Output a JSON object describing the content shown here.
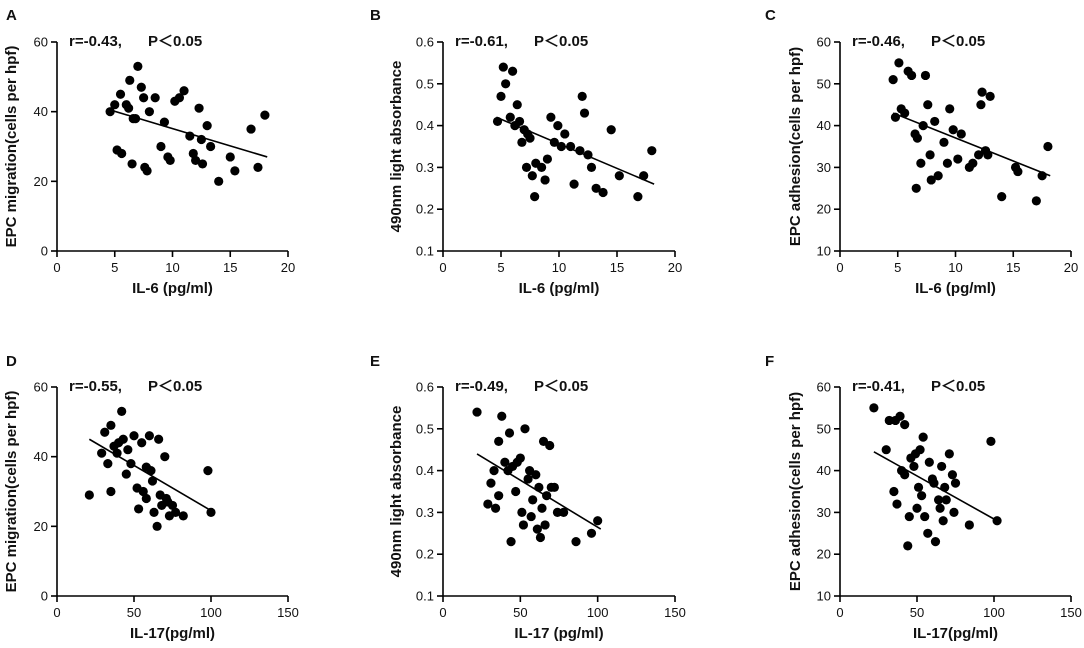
{
  "figure_colors": {
    "marker": "#000000",
    "line": "#000000",
    "background": "#ffffff"
  },
  "chart_data": [
    {
      "type": "scatter",
      "panel": "A",
      "annotation_r": "r=-0.43,",
      "annotation_p": "P＜0.05",
      "xlabel": "IL-6 (pg/ml)",
      "ylabel": "EPC migration(cells per hpf)",
      "xlim": [
        0,
        20
      ],
      "ylim": [
        0,
        60
      ],
      "xticks": [
        0,
        5,
        10,
        15,
        20
      ],
      "yticks": [
        0,
        20,
        40,
        60
      ],
      "fit": {
        "x": [
          4.6,
          18.2
        ],
        "y": [
          40.5,
          27
        ]
      },
      "points": [
        {
          "x": 4.6,
          "y": 40
        },
        {
          "x": 5.0,
          "y": 42
        },
        {
          "x": 5.2,
          "y": 29
        },
        {
          "x": 5.5,
          "y": 45
        },
        {
          "x": 5.6,
          "y": 28
        },
        {
          "x": 6.0,
          "y": 42
        },
        {
          "x": 6.2,
          "y": 41
        },
        {
          "x": 6.3,
          "y": 49
        },
        {
          "x": 6.5,
          "y": 25
        },
        {
          "x": 6.6,
          "y": 38
        },
        {
          "x": 6.8,
          "y": 38
        },
        {
          "x": 7.0,
          "y": 53
        },
        {
          "x": 7.3,
          "y": 47
        },
        {
          "x": 7.5,
          "y": 44
        },
        {
          "x": 7.6,
          "y": 24
        },
        {
          "x": 7.8,
          "y": 23
        },
        {
          "x": 8.0,
          "y": 40
        },
        {
          "x": 8.5,
          "y": 44
        },
        {
          "x": 9.0,
          "y": 30
        },
        {
          "x": 9.3,
          "y": 37
        },
        {
          "x": 9.6,
          "y": 27
        },
        {
          "x": 9.8,
          "y": 26
        },
        {
          "x": 10.2,
          "y": 43
        },
        {
          "x": 10.6,
          "y": 44
        },
        {
          "x": 11.0,
          "y": 46
        },
        {
          "x": 11.5,
          "y": 33
        },
        {
          "x": 11.8,
          "y": 28
        },
        {
          "x": 12.0,
          "y": 26
        },
        {
          "x": 12.3,
          "y": 41
        },
        {
          "x": 12.5,
          "y": 32
        },
        {
          "x": 12.6,
          "y": 25
        },
        {
          "x": 13.0,
          "y": 36
        },
        {
          "x": 13.3,
          "y": 30
        },
        {
          "x": 14.0,
          "y": 20
        },
        {
          "x": 15.0,
          "y": 27
        },
        {
          "x": 15.4,
          "y": 23
        },
        {
          "x": 16.8,
          "y": 35
        },
        {
          "x": 17.4,
          "y": 24
        },
        {
          "x": 18.0,
          "y": 39
        }
      ]
    },
    {
      "type": "scatter",
      "panel": "B",
      "annotation_r": "r=-0.61,",
      "annotation_p": "P＜0.05",
      "xlabel": "IL-6 (pg/ml)",
      "ylabel": "490nm light absorbance",
      "xlim": [
        0,
        20
      ],
      "ylim": [
        0.1,
        0.6
      ],
      "xticks": [
        0,
        5,
        10,
        15,
        20
      ],
      "yticks": [
        0.1,
        0.2,
        0.3,
        0.4,
        0.5,
        0.6
      ],
      "fit": {
        "x": [
          4.6,
          18.2
        ],
        "y": [
          0.42,
          0.26
        ]
      },
      "points": [
        {
          "x": 4.7,
          "y": 0.41
        },
        {
          "x": 5.0,
          "y": 0.47
        },
        {
          "x": 5.2,
          "y": 0.54
        },
        {
          "x": 5.4,
          "y": 0.5
        },
        {
          "x": 5.8,
          "y": 0.42
        },
        {
          "x": 6.0,
          "y": 0.53
        },
        {
          "x": 6.2,
          "y": 0.4
        },
        {
          "x": 6.4,
          "y": 0.45
        },
        {
          "x": 6.6,
          "y": 0.41
        },
        {
          "x": 6.8,
          "y": 0.36
        },
        {
          "x": 7.0,
          "y": 0.39
        },
        {
          "x": 7.2,
          "y": 0.3
        },
        {
          "x": 7.3,
          "y": 0.38
        },
        {
          "x": 7.5,
          "y": 0.37
        },
        {
          "x": 7.7,
          "y": 0.28
        },
        {
          "x": 7.9,
          "y": 0.23
        },
        {
          "x": 8.0,
          "y": 0.31
        },
        {
          "x": 8.5,
          "y": 0.3
        },
        {
          "x": 8.8,
          "y": 0.27
        },
        {
          "x": 9.0,
          "y": 0.32
        },
        {
          "x": 9.3,
          "y": 0.42
        },
        {
          "x": 9.6,
          "y": 0.36
        },
        {
          "x": 9.9,
          "y": 0.4
        },
        {
          "x": 10.2,
          "y": 0.35
        },
        {
          "x": 10.5,
          "y": 0.38
        },
        {
          "x": 11.0,
          "y": 0.35
        },
        {
          "x": 11.3,
          "y": 0.26
        },
        {
          "x": 11.8,
          "y": 0.34
        },
        {
          "x": 12.0,
          "y": 0.47
        },
        {
          "x": 12.2,
          "y": 0.43
        },
        {
          "x": 12.5,
          "y": 0.33
        },
        {
          "x": 12.8,
          "y": 0.3
        },
        {
          "x": 13.2,
          "y": 0.25
        },
        {
          "x": 13.8,
          "y": 0.24
        },
        {
          "x": 14.5,
          "y": 0.39
        },
        {
          "x": 15.2,
          "y": 0.28
        },
        {
          "x": 16.8,
          "y": 0.23
        },
        {
          "x": 17.3,
          "y": 0.28
        },
        {
          "x": 18.0,
          "y": 0.34
        }
      ]
    },
    {
      "type": "scatter",
      "panel": "C",
      "annotation_r": "r=-0.46,",
      "annotation_p": "P＜0.05",
      "xlabel": "IL-6 (pg/ml)",
      "ylabel": "EPC adhesion(cells per hpf)",
      "xlim": [
        0,
        20
      ],
      "ylim": [
        10,
        60
      ],
      "xticks": [
        0,
        5,
        10,
        15,
        20
      ],
      "yticks": [
        10,
        20,
        30,
        40,
        50,
        60
      ],
      "fit": {
        "x": [
          4.6,
          18.2
        ],
        "y": [
          43,
          28
        ]
      },
      "points": [
        {
          "x": 4.6,
          "y": 51
        },
        {
          "x": 4.8,
          "y": 42
        },
        {
          "x": 5.1,
          "y": 55
        },
        {
          "x": 5.3,
          "y": 44
        },
        {
          "x": 5.6,
          "y": 43
        },
        {
          "x": 5.9,
          "y": 53
        },
        {
          "x": 6.2,
          "y": 52
        },
        {
          "x": 6.5,
          "y": 38
        },
        {
          "x": 6.6,
          "y": 25
        },
        {
          "x": 6.7,
          "y": 37
        },
        {
          "x": 7.0,
          "y": 31
        },
        {
          "x": 7.2,
          "y": 40
        },
        {
          "x": 7.4,
          "y": 52
        },
        {
          "x": 7.6,
          "y": 45
        },
        {
          "x": 7.8,
          "y": 33
        },
        {
          "x": 7.9,
          "y": 27
        },
        {
          "x": 8.2,
          "y": 41
        },
        {
          "x": 8.5,
          "y": 28
        },
        {
          "x": 9.0,
          "y": 36
        },
        {
          "x": 9.3,
          "y": 31
        },
        {
          "x": 9.5,
          "y": 44
        },
        {
          "x": 9.8,
          "y": 39
        },
        {
          "x": 10.2,
          "y": 32
        },
        {
          "x": 10.5,
          "y": 38
        },
        {
          "x": 11.2,
          "y": 30
        },
        {
          "x": 11.5,
          "y": 31
        },
        {
          "x": 12.0,
          "y": 33
        },
        {
          "x": 12.2,
          "y": 45
        },
        {
          "x": 12.3,
          "y": 48
        },
        {
          "x": 12.6,
          "y": 34
        },
        {
          "x": 12.8,
          "y": 33
        },
        {
          "x": 13.0,
          "y": 47
        },
        {
          "x": 14.0,
          "y": 23
        },
        {
          "x": 15.2,
          "y": 30
        },
        {
          "x": 15.4,
          "y": 29
        },
        {
          "x": 17.0,
          "y": 22
        },
        {
          "x": 17.5,
          "y": 28
        },
        {
          "x": 18.0,
          "y": 35
        }
      ]
    },
    {
      "type": "scatter",
      "panel": "D",
      "annotation_r": "r=-0.55,",
      "annotation_p": "P＜0.05",
      "xlabel": "IL-17(pg/ml)",
      "ylabel": "EPC migration(cells per hpf)",
      "xlim": [
        0,
        150
      ],
      "ylim": [
        0,
        60
      ],
      "xticks": [
        0,
        50,
        100,
        150
      ],
      "yticks": [
        0,
        20,
        40,
        60
      ],
      "fit": {
        "x": [
          21,
          102
        ],
        "y": [
          45,
          24
        ]
      },
      "points": [
        {
          "x": 21,
          "y": 29
        },
        {
          "x": 29,
          "y": 41
        },
        {
          "x": 31,
          "y": 47
        },
        {
          "x": 33,
          "y": 38
        },
        {
          "x": 35,
          "y": 49
        },
        {
          "x": 35,
          "y": 30
        },
        {
          "x": 37,
          "y": 43
        },
        {
          "x": 39,
          "y": 41
        },
        {
          "x": 40,
          "y": 44
        },
        {
          "x": 42,
          "y": 53
        },
        {
          "x": 43,
          "y": 45
        },
        {
          "x": 45,
          "y": 35
        },
        {
          "x": 46,
          "y": 42
        },
        {
          "x": 48,
          "y": 38
        },
        {
          "x": 50,
          "y": 46
        },
        {
          "x": 52,
          "y": 31
        },
        {
          "x": 53,
          "y": 25
        },
        {
          "x": 55,
          "y": 44
        },
        {
          "x": 56,
          "y": 30
        },
        {
          "x": 58,
          "y": 28
        },
        {
          "x": 58,
          "y": 37
        },
        {
          "x": 60,
          "y": 46
        },
        {
          "x": 61,
          "y": 36
        },
        {
          "x": 62,
          "y": 33
        },
        {
          "x": 63,
          "y": 24
        },
        {
          "x": 65,
          "y": 20
        },
        {
          "x": 66,
          "y": 45
        },
        {
          "x": 67,
          "y": 29
        },
        {
          "x": 68,
          "y": 26
        },
        {
          "x": 70,
          "y": 40
        },
        {
          "x": 71,
          "y": 28
        },
        {
          "x": 72,
          "y": 27
        },
        {
          "x": 73,
          "y": 23
        },
        {
          "x": 75,
          "y": 26
        },
        {
          "x": 77,
          "y": 24
        },
        {
          "x": 82,
          "y": 23
        },
        {
          "x": 98,
          "y": 36
        },
        {
          "x": 100,
          "y": 24
        }
      ]
    },
    {
      "type": "scatter",
      "panel": "E",
      "annotation_r": "r=-0.49,",
      "annotation_p": "P＜0.05",
      "xlabel": "IL-17 (pg/ml)",
      "ylabel": "490nm light absorbance",
      "xlim": [
        0,
        150
      ],
      "ylim": [
        0.1,
        0.6
      ],
      "xticks": [
        0,
        50,
        100,
        150
      ],
      "yticks": [
        0.1,
        0.2,
        0.3,
        0.4,
        0.5,
        0.6
      ],
      "fit": {
        "x": [
          22,
          102
        ],
        "y": [
          0.44,
          0.26
        ]
      },
      "points": [
        {
          "x": 22,
          "y": 0.54
        },
        {
          "x": 29,
          "y": 0.32
        },
        {
          "x": 31,
          "y": 0.37
        },
        {
          "x": 33,
          "y": 0.4
        },
        {
          "x": 34,
          "y": 0.31
        },
        {
          "x": 36,
          "y": 0.47
        },
        {
          "x": 36,
          "y": 0.34
        },
        {
          "x": 38,
          "y": 0.53
        },
        {
          "x": 40,
          "y": 0.42
        },
        {
          "x": 42,
          "y": 0.4
        },
        {
          "x": 43,
          "y": 0.49
        },
        {
          "x": 44,
          "y": 0.23
        },
        {
          "x": 45,
          "y": 0.41
        },
        {
          "x": 47,
          "y": 0.35
        },
        {
          "x": 48,
          "y": 0.42
        },
        {
          "x": 50,
          "y": 0.43
        },
        {
          "x": 51,
          "y": 0.3
        },
        {
          "x": 52,
          "y": 0.27
        },
        {
          "x": 53,
          "y": 0.5
        },
        {
          "x": 55,
          "y": 0.38
        },
        {
          "x": 56,
          "y": 0.4
        },
        {
          "x": 57,
          "y": 0.29
        },
        {
          "x": 58,
          "y": 0.33
        },
        {
          "x": 60,
          "y": 0.39
        },
        {
          "x": 61,
          "y": 0.26
        },
        {
          "x": 62,
          "y": 0.36
        },
        {
          "x": 63,
          "y": 0.24
        },
        {
          "x": 64,
          "y": 0.31
        },
        {
          "x": 65,
          "y": 0.47
        },
        {
          "x": 66,
          "y": 0.27
        },
        {
          "x": 67,
          "y": 0.34
        },
        {
          "x": 69,
          "y": 0.46
        },
        {
          "x": 70,
          "y": 0.36
        },
        {
          "x": 72,
          "y": 0.36
        },
        {
          "x": 74,
          "y": 0.3
        },
        {
          "x": 78,
          "y": 0.3
        },
        {
          "x": 86,
          "y": 0.23
        },
        {
          "x": 96,
          "y": 0.25
        },
        {
          "x": 100,
          "y": 0.28
        }
      ]
    },
    {
      "type": "scatter",
      "panel": "F",
      "annotation_r": "r=-0.41,",
      "annotation_p": "P＜0.05",
      "xlabel": "IL-17(pg/ml)",
      "ylabel": "EPC adhesion(cells per hpf)",
      "xlim": [
        0,
        150
      ],
      "ylim": [
        10,
        60
      ],
      "xticks": [
        0,
        50,
        100,
        150
      ],
      "yticks": [
        10,
        20,
        30,
        40,
        50,
        60
      ],
      "fit": {
        "x": [
          22,
          102
        ],
        "y": [
          44.5,
          28
        ]
      },
      "points": [
        {
          "x": 22,
          "y": 55
        },
        {
          "x": 30,
          "y": 45
        },
        {
          "x": 32,
          "y": 52
        },
        {
          "x": 35,
          "y": 35
        },
        {
          "x": 36,
          "y": 52
        },
        {
          "x": 37,
          "y": 32
        },
        {
          "x": 39,
          "y": 53
        },
        {
          "x": 40,
          "y": 40
        },
        {
          "x": 42,
          "y": 39
        },
        {
          "x": 42,
          "y": 51
        },
        {
          "x": 44,
          "y": 22
        },
        {
          "x": 45,
          "y": 29
        },
        {
          "x": 46,
          "y": 43
        },
        {
          "x": 48,
          "y": 41
        },
        {
          "x": 49,
          "y": 44
        },
        {
          "x": 50,
          "y": 31
        },
        {
          "x": 51,
          "y": 36
        },
        {
          "x": 52,
          "y": 45
        },
        {
          "x": 53,
          "y": 34
        },
        {
          "x": 54,
          "y": 48
        },
        {
          "x": 55,
          "y": 29
        },
        {
          "x": 57,
          "y": 25
        },
        {
          "x": 58,
          "y": 42
        },
        {
          "x": 60,
          "y": 38
        },
        {
          "x": 61,
          "y": 37
        },
        {
          "x": 62,
          "y": 23
        },
        {
          "x": 64,
          "y": 33
        },
        {
          "x": 65,
          "y": 31
        },
        {
          "x": 66,
          "y": 41
        },
        {
          "x": 67,
          "y": 28
        },
        {
          "x": 68,
          "y": 36
        },
        {
          "x": 69,
          "y": 33
        },
        {
          "x": 71,
          "y": 44
        },
        {
          "x": 73,
          "y": 39
        },
        {
          "x": 74,
          "y": 30
        },
        {
          "x": 75,
          "y": 37
        },
        {
          "x": 84,
          "y": 27
        },
        {
          "x": 98,
          "y": 47
        },
        {
          "x": 102,
          "y": 28
        }
      ]
    }
  ]
}
